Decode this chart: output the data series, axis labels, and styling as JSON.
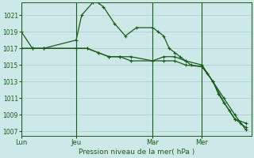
{
  "bg_color": "#cce8e8",
  "grid_color": "#aacccc",
  "line_color": "#1a5c1a",
  "marker_color": "#1a5c1a",
  "xlabel": "Pression niveau de la mer( hPa )",
  "ylim": [
    1006.5,
    1022.5
  ],
  "yticks": [
    1007,
    1009,
    1011,
    1013,
    1015,
    1017,
    1019,
    1021
  ],
  "xtick_labels": [
    "Lun",
    "Jeu",
    "Mar",
    "Mer"
  ],
  "xtick_positions": [
    0,
    10,
    24,
    33
  ],
  "vline_positions": [
    0,
    10,
    24,
    33
  ],
  "xlim": [
    0,
    42
  ],
  "series1_x": [
    0,
    2,
    4,
    10,
    11,
    13,
    14,
    15,
    17,
    19,
    21,
    24,
    25,
    26,
    27,
    28,
    29,
    30,
    31,
    33,
    34,
    35,
    36,
    37,
    38,
    39,
    40,
    41
  ],
  "series1_y": [
    1019,
    1017,
    1017,
    1018,
    1021,
    1022.5,
    1022.5,
    1022,
    1020,
    1018.5,
    1019.5,
    1019.5,
    1019,
    1018.5,
    1017,
    1016.5,
    1016,
    1015.5,
    1015,
    1014.8,
    1014,
    1013,
    1011.5,
    1010.5,
    1009.5,
    1008.5,
    1008,
    1007.5
  ],
  "series2_x": [
    0,
    2,
    4,
    10,
    12,
    14,
    16,
    18,
    20,
    24,
    26,
    28,
    30,
    33,
    35,
    37,
    39,
    41
  ],
  "series2_y": [
    1017,
    1017,
    1017,
    1017,
    1017,
    1016.5,
    1016,
    1016,
    1015.5,
    1015.5,
    1015.5,
    1015.5,
    1015,
    1014.8,
    1013,
    1011,
    1009,
    1007.2
  ],
  "series3_x": [
    0,
    2,
    4,
    10,
    12,
    14,
    16,
    18,
    20,
    24,
    26,
    28,
    30,
    33,
    35,
    37,
    39,
    41
  ],
  "series3_y": [
    1017,
    1017,
    1017,
    1017,
    1017,
    1016.5,
    1016,
    1016,
    1016,
    1015.5,
    1016,
    1016,
    1015.5,
    1015,
    1013,
    1010.5,
    1008.5,
    1008
  ]
}
